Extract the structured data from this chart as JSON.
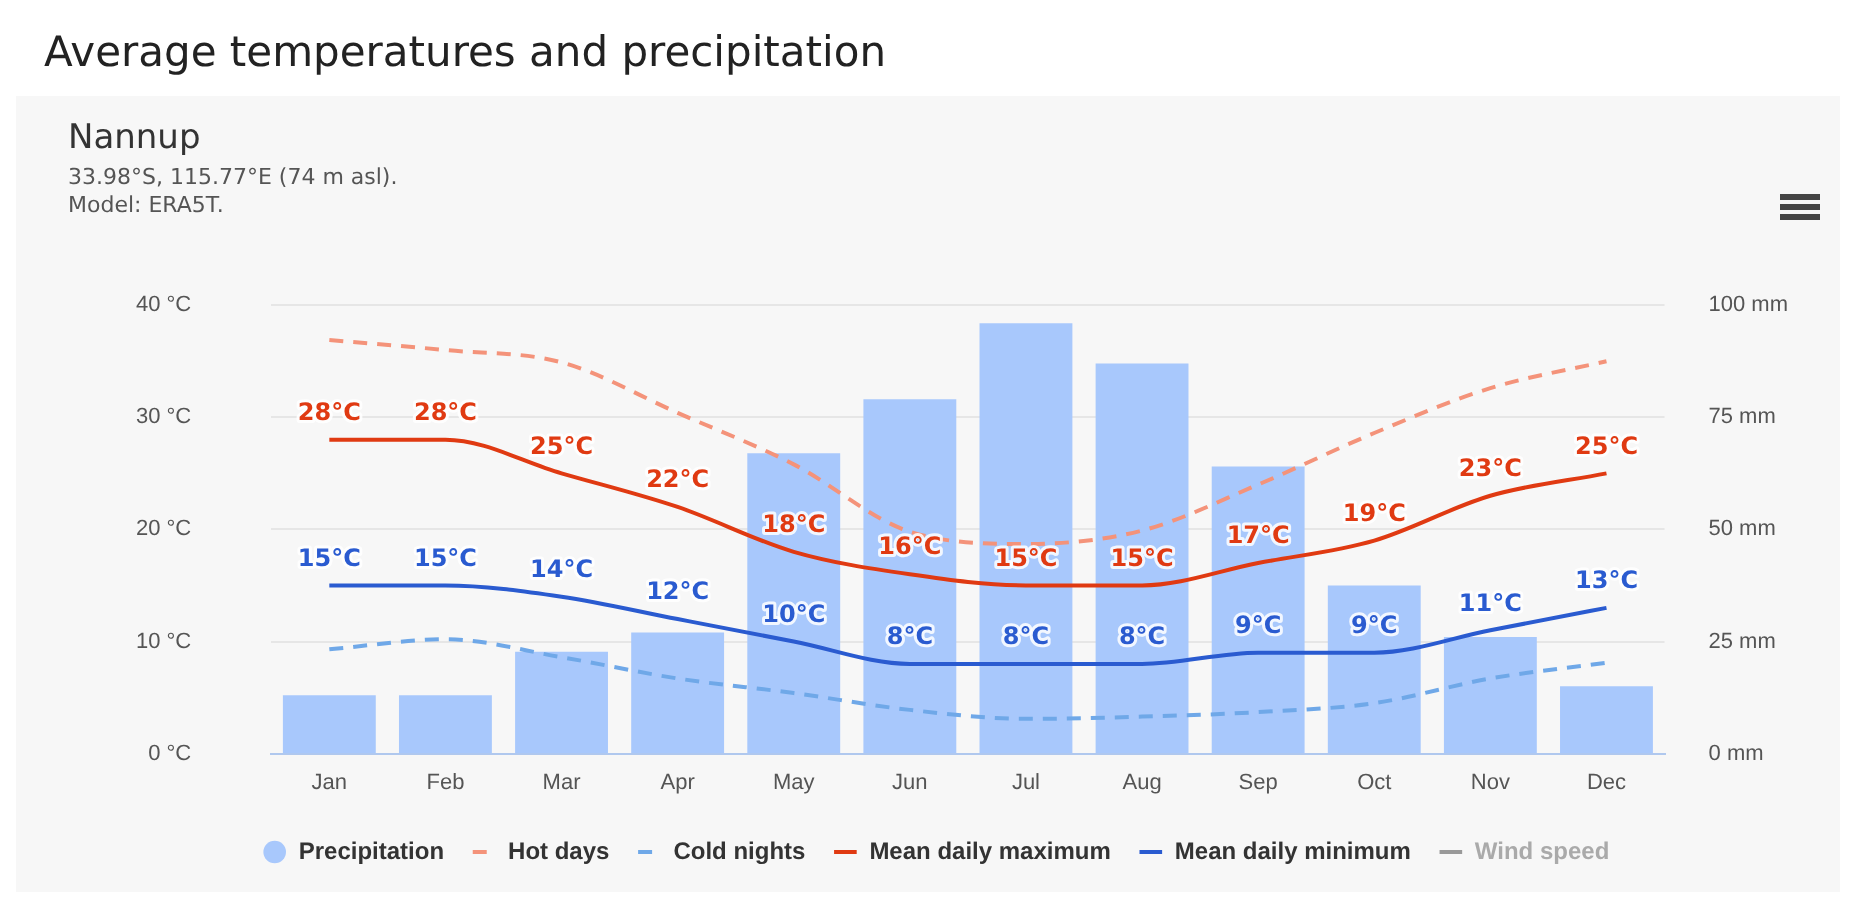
{
  "chart_data": {
    "type": "bar",
    "title": "Average temperatures and precipitation",
    "subtitle": "Nannup",
    "annotations": [
      "33.98°S, 115.77°E (74 m asl).",
      "Model: ERA5T."
    ],
    "categories": [
      "Jan",
      "Feb",
      "Mar",
      "Apr",
      "May",
      "Jun",
      "Jul",
      "Aug",
      "Sep",
      "Oct",
      "Nov",
      "Dec"
    ],
    "series": [
      {
        "name": "Precipitation",
        "axis": "y2",
        "color": "#a8c8fc",
        "values": [
          13,
          13,
          22.7,
          27,
          67,
          79,
          96,
          87,
          64,
          37.5,
          26,
          15
        ]
      },
      {
        "name": "Hot days",
        "type": "line",
        "line_style": "dashed",
        "color": "#f4937a",
        "values": [
          36.9,
          36,
          34.9,
          30.4,
          25.8,
          19.8,
          18.7,
          19.9,
          24,
          28.6,
          32.6,
          35
        ]
      },
      {
        "name": "Cold nights",
        "type": "line",
        "line_style": "dashed",
        "color": "#6fa8e8",
        "values": [
          9.3,
          10.2,
          8.6,
          6.7,
          5.4,
          3.9,
          3.1,
          3.3,
          3.7,
          4.5,
          6.7,
          8.1
        ]
      },
      {
        "name": "Mean daily maximum",
        "type": "line",
        "line_style": "solid",
        "color": "#e03a12",
        "values": [
          28,
          28,
          25,
          22,
          18,
          16,
          15,
          15,
          17,
          19,
          23,
          25
        ],
        "value_labels": [
          "28°C",
          "28°C",
          "25°C",
          "22°C",
          "18°C",
          "16°C",
          "15°C",
          "15°C",
          "17°C",
          "19°C",
          "23°C",
          "25°C"
        ]
      },
      {
        "name": "Mean daily minimum",
        "type": "line",
        "line_style": "solid",
        "color": "#2a5bd0",
        "values": [
          15,
          15,
          14,
          12,
          10,
          8,
          8,
          8,
          9,
          9,
          11,
          13
        ],
        "value_labels": [
          "15°C",
          "15°C",
          "14°C",
          "12°C",
          "10°C",
          "8°C",
          "8°C",
          "8°C",
          "9°C",
          "9°C",
          "11°C",
          "13°C"
        ]
      },
      {
        "name": "Wind speed",
        "type": "line",
        "line_style": "solid",
        "color": "#999999",
        "values": [
          null,
          null,
          null,
          null,
          null,
          null,
          null,
          null,
          null,
          null,
          null,
          null
        ]
      }
    ],
    "ylim": [
      0,
      40
    ],
    "yticks": [
      {
        "value": 0,
        "label": "0 °C"
      },
      {
        "value": 10,
        "label": "10 °C"
      },
      {
        "value": 20,
        "label": "20 °C"
      },
      {
        "value": 30,
        "label": "30 °C"
      },
      {
        "value": 40,
        "label": "40 °C"
      }
    ],
    "y2lim": [
      0,
      100
    ],
    "y2ticks": [
      {
        "value": 0,
        "label": "0 mm"
      },
      {
        "value": 25,
        "label": "25 mm"
      },
      {
        "value": 50,
        "label": "50 mm"
      },
      {
        "value": 75,
        "label": "75 mm"
      },
      {
        "value": 100,
        "label": "100 mm"
      }
    ],
    "grid": "y",
    "legend": "bottom",
    "marker": "none"
  }
}
